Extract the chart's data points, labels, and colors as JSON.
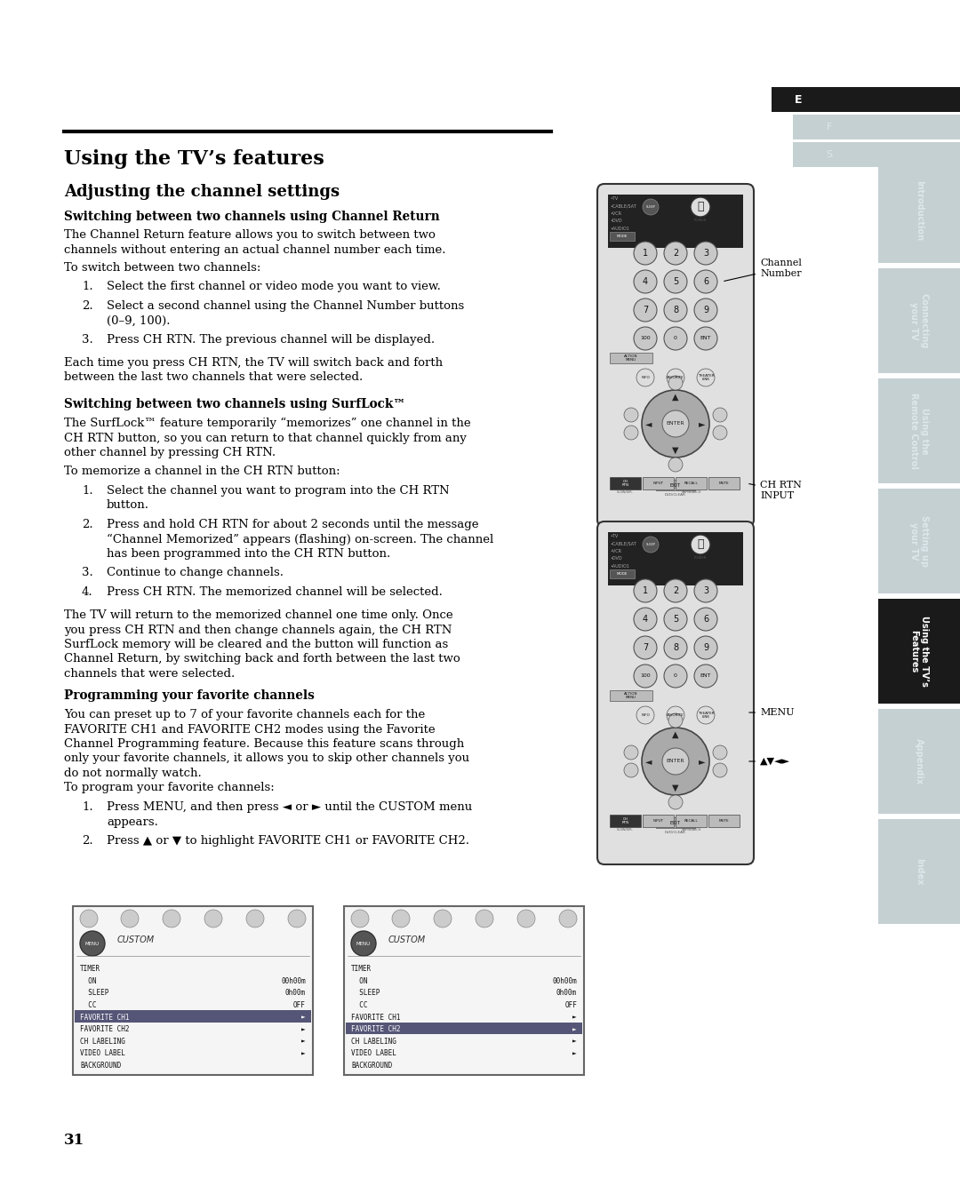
{
  "page_bg": "#ffffff",
  "section_title": "Using the TV’s features",
  "subsection_title": "Adjusting the channel settings",
  "sidebar_labels": [
    "Introduction",
    "Connecting\nyour TV",
    "Using the\nRemote Control",
    "Setting up\nyour TV",
    "Using the TV’s\nFeatures",
    "Appendix",
    "Index"
  ],
  "sidebar_active": 4,
  "sidebar_bg_inactive": "#c5d0d3",
  "sidebar_bg_active": "#1a1a1a",
  "sidebar_text_inactive": "#dce8eb",
  "sidebar_text_active": "#ffffff",
  "efs_labels": [
    "E",
    "F",
    "S"
  ],
  "efs_active": 0,
  "efs_active_bg": "#1a1a1a",
  "efs_inactive_bg": "#c5d0d3",
  "efs_active_text": "#ffffff",
  "efs_inactive_text": "#dce8eb",
  "page_number": "31"
}
